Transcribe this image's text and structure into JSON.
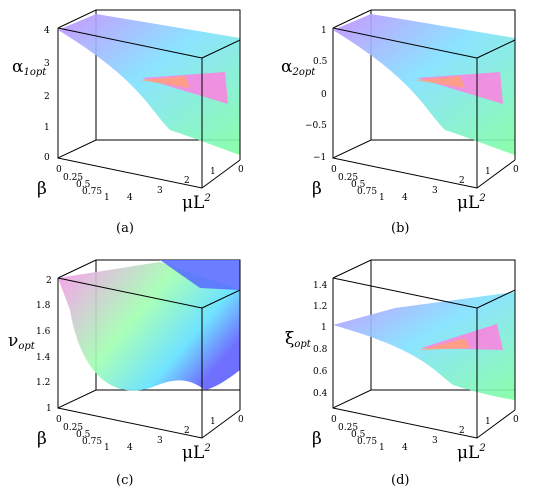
{
  "chart_data": [
    {
      "type": "surface",
      "caption": "(a)",
      "zlabel": "α",
      "zlabel_sub": "1opt",
      "xlabel": "β",
      "ylabel": "μL",
      "ylabel_sup": "2",
      "zticks": [
        "0",
        "1",
        "2",
        "3",
        "4"
      ],
      "xticks": [
        "0",
        "0.25",
        "0.5",
        "0.75",
        "1"
      ],
      "yticks": [
        "4",
        "3",
        "2",
        "1",
        "0"
      ],
      "zlim": [
        0,
        4
      ],
      "surface": "decreasing",
      "colors": [
        "#c48cff",
        "#7fe0ff",
        "#ff80e0",
        "#7fffa0"
      ]
    },
    {
      "type": "surface",
      "caption": "(b)",
      "zlabel": "α",
      "zlabel_sub": "2opt",
      "xlabel": "β",
      "ylabel": "μL",
      "ylabel_sup": "2",
      "zticks": [
        "−1",
        "−0.5",
        "0",
        "0.5",
        "1"
      ],
      "xticks": [
        "0",
        "0.25",
        "0.5",
        "0.75",
        "1"
      ],
      "yticks": [
        "4",
        "3",
        "2",
        "1",
        "0"
      ],
      "zlim": [
        -1,
        1
      ],
      "surface": "decreasing",
      "colors": [
        "#c48cff",
        "#7fe0ff",
        "#ff80e0",
        "#7fffa0"
      ]
    },
    {
      "type": "surface",
      "caption": "(c)",
      "zlabel": "ν",
      "zlabel_sub": "opt",
      "xlabel": "β",
      "ylabel": "μL",
      "ylabel_sup": "2",
      "zticks": [
        "1",
        "1.2",
        "1.4",
        "1.6",
        "1.8",
        "2"
      ],
      "xticks": [
        "0",
        "0.25",
        "0.5",
        "0.75",
        "1"
      ],
      "yticks": [
        "4",
        "3",
        "2",
        "1",
        "0"
      ],
      "zlim": [
        1,
        2
      ],
      "surface": "bowl",
      "colors": [
        "#ff90f0",
        "#a0ffb0",
        "#6060ff",
        "#60e0ff"
      ]
    },
    {
      "type": "surface",
      "caption": "(d)",
      "zlabel": "ξ",
      "zlabel_sub": "opt",
      "xlabel": "β",
      "ylabel": "μL",
      "ylabel_sup": "2",
      "zticks": [
        "0.4",
        "0.6",
        "0.8",
        "1",
        "1.2",
        "1.4"
      ],
      "xticks": [
        "0",
        "0.25",
        "0.5",
        "0.75",
        "1"
      ],
      "yticks": [
        "4",
        "3",
        "2",
        "1",
        "0"
      ],
      "zlim": [
        0.3,
        1.5
      ],
      "surface": "decreasing",
      "colors": [
        "#c48cff",
        "#7fe0ff",
        "#ff80e0",
        "#7fffa0"
      ]
    }
  ]
}
